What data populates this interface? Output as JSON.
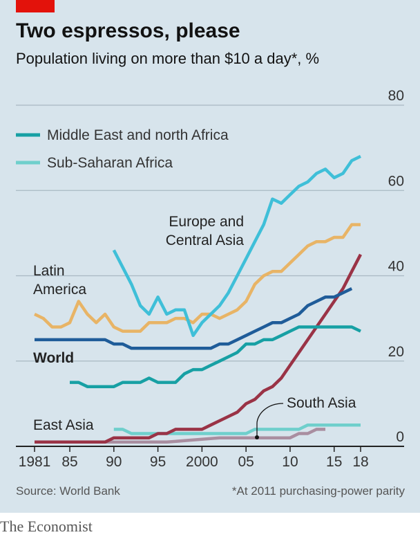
{
  "header": {
    "title": "Two espressos, please",
    "subtitle": "Population living on more than $10 a day*, %"
  },
  "footer": {
    "source": "Source: World Bank",
    "footnote": "*At 2011 purchasing-power parity",
    "brand": "The Economist"
  },
  "colors": {
    "background": "#d7e4ec",
    "brand_red": "#e3120b"
  },
  "chart_data": {
    "type": "line",
    "title": "Two espressos, please",
    "subtitle": "Population living on more than $10 a day*, %",
    "ylim": [
      0,
      80
    ],
    "xlim": [
      1981,
      2018
    ],
    "grid": true,
    "y_axis_side": "right",
    "y_ticks": [
      0,
      20,
      40,
      60,
      80
    ],
    "x_ticks": [
      {
        "value": 1981,
        "label": "1981"
      },
      {
        "value": 1985,
        "label": "85"
      },
      {
        "value": 1990,
        "label": "90"
      },
      {
        "value": 1995,
        "label": "95"
      },
      {
        "value": 2000,
        "label": "2000"
      },
      {
        "value": 2005,
        "label": "05"
      },
      {
        "value": 2010,
        "label": "10"
      },
      {
        "value": 2015,
        "label": "15"
      },
      {
        "value": 2018,
        "label": "18"
      }
    ],
    "legend": {
      "placement": "top-left",
      "entries": [
        {
          "name": "Middle East and north Africa",
          "color": "#17a0a4"
        },
        {
          "name": "Sub-Saharan Africa",
          "color": "#6fcfcc"
        }
      ]
    },
    "series": [
      {
        "name": "Sub-Saharan Africa",
        "color": "#6fcfcc",
        "x": [
          1990,
          1991,
          1992,
          1993,
          1994,
          1995,
          1996,
          1997,
          1998,
          1999,
          2000,
          2001,
          2002,
          2003,
          2004,
          2005,
          2006,
          2007,
          2008,
          2009,
          2010,
          2011,
          2012,
          2013,
          2014,
          2015,
          2016,
          2017,
          2018
        ],
        "y": [
          4,
          4,
          3,
          3,
          3,
          3,
          3,
          3,
          3,
          3,
          3,
          3,
          3,
          3,
          3,
          3,
          4,
          4,
          4,
          4,
          4,
          4,
          5,
          5,
          5,
          5,
          5,
          5,
          5
        ]
      },
      {
        "name": "East Asia",
        "color": "#a98ea0",
        "x": [
          1981,
          1984,
          1987,
          1990,
          1993,
          1996,
          1999,
          2002,
          2005,
          2008,
          2010,
          2011,
          2012,
          2013,
          2014
        ],
        "y": [
          1,
          1,
          1,
          1,
          1,
          1,
          1.5,
          2,
          2,
          2,
          2,
          3,
          3,
          4,
          4
        ]
      },
      {
        "name": "South Asia",
        "color": "#9a3346",
        "x": [
          1981,
          1985,
          1989,
          1990,
          1992,
          1994,
          1995,
          1996,
          1997,
          1998,
          1999,
          2000,
          2001,
          2002,
          2003,
          2004,
          2005,
          2006,
          2007,
          2008,
          2009,
          2010,
          2011,
          2012,
          2013,
          2014,
          2015,
          2016,
          2017,
          2018
        ],
        "y": [
          1,
          1,
          1,
          2,
          2,
          2,
          3,
          3,
          4,
          4,
          4,
          4,
          5,
          6,
          7,
          8,
          10,
          11,
          13,
          14,
          16,
          19,
          22,
          25,
          28,
          31,
          34,
          37,
          41,
          45
        ]
      },
      {
        "name": "Middle East and north Africa",
        "color": "#17a0a4",
        "x": [
          1985,
          1986,
          1987,
          1988,
          1989,
          1990,
          1991,
          1992,
          1993,
          1994,
          1995,
          1996,
          1997,
          1998,
          1999,
          2000,
          2001,
          2002,
          2003,
          2004,
          2005,
          2006,
          2007,
          2008,
          2009,
          2010,
          2011,
          2012,
          2013,
          2014,
          2015,
          2016,
          2017,
          2018
        ],
        "y": [
          15,
          15,
          14,
          14,
          14,
          14,
          15,
          15,
          15,
          16,
          15,
          15,
          15,
          17,
          18,
          18,
          19,
          20,
          21,
          22,
          24,
          24,
          25,
          25,
          26,
          27,
          28,
          28,
          28,
          28,
          28,
          28,
          28,
          27
        ]
      },
      {
        "name": "World",
        "color": "#1f5c99",
        "x": [
          1981,
          1984,
          1987,
          1989,
          1990,
          1991,
          1992,
          1995,
          1998,
          2001,
          2002,
          2003,
          2005,
          2006,
          2007,
          2008,
          2009,
          2010,
          2011,
          2012,
          2013,
          2014,
          2015,
          2016,
          2017
        ],
        "y": [
          25,
          25,
          25,
          25,
          24,
          24,
          23,
          23,
          23,
          23,
          24,
          24,
          26,
          27,
          28,
          29,
          29,
          30,
          31,
          33,
          34,
          35,
          35,
          36,
          37
        ]
      },
      {
        "name": "Latin America",
        "color": "#e8b466",
        "x": [
          1981,
          1982,
          1983,
          1984,
          1985,
          1986,
          1987,
          1988,
          1989,
          1990,
          1991,
          1992,
          1993,
          1994,
          1995,
          1996,
          1997,
          1998,
          1999,
          2000,
          2001,
          2002,
          2003,
          2004,
          2005,
          2006,
          2007,
          2008,
          2009,
          2010,
          2011,
          2012,
          2013,
          2014,
          2015,
          2016,
          2017,
          2018
        ],
        "y": [
          31,
          30,
          28,
          28,
          29,
          34,
          31,
          29,
          31,
          28,
          27,
          27,
          27,
          29,
          29,
          29,
          30,
          30,
          29,
          31,
          31,
          30,
          31,
          32,
          34,
          38,
          40,
          41,
          41,
          43,
          45,
          47,
          48,
          48,
          49,
          49,
          52,
          52
        ]
      },
      {
        "name": "Europe and Central Asia",
        "color": "#3fbfd8",
        "x": [
          1990,
          1991,
          1992,
          1993,
          1994,
          1995,
          1996,
          1997,
          1998,
          1999,
          2000,
          2001,
          2002,
          2003,
          2004,
          2005,
          2006,
          2007,
          2008,
          2009,
          2010,
          2011,
          2012,
          2013,
          2014,
          2015,
          2016,
          2017,
          2018
        ],
        "y": [
          46,
          42,
          38,
          33,
          31,
          35,
          31,
          32,
          32,
          26,
          29,
          31,
          33,
          36,
          40,
          44,
          48,
          52,
          58,
          57,
          59,
          61,
          62,
          64,
          65,
          63,
          64,
          67,
          68
        ]
      }
    ],
    "annotations": [
      {
        "text": "Latin America",
        "lines": [
          "Latin",
          "America"
        ]
      },
      {
        "text": "Europe and Central Asia",
        "lines": [
          "Europe and",
          "Central Asia"
        ]
      },
      {
        "text": "World",
        "lines": [
          "World"
        ]
      },
      {
        "text": "South Asia",
        "lines": [
          "South Asia"
        ]
      },
      {
        "text": "East Asia",
        "lines": [
          "East Asia"
        ]
      }
    ]
  }
}
